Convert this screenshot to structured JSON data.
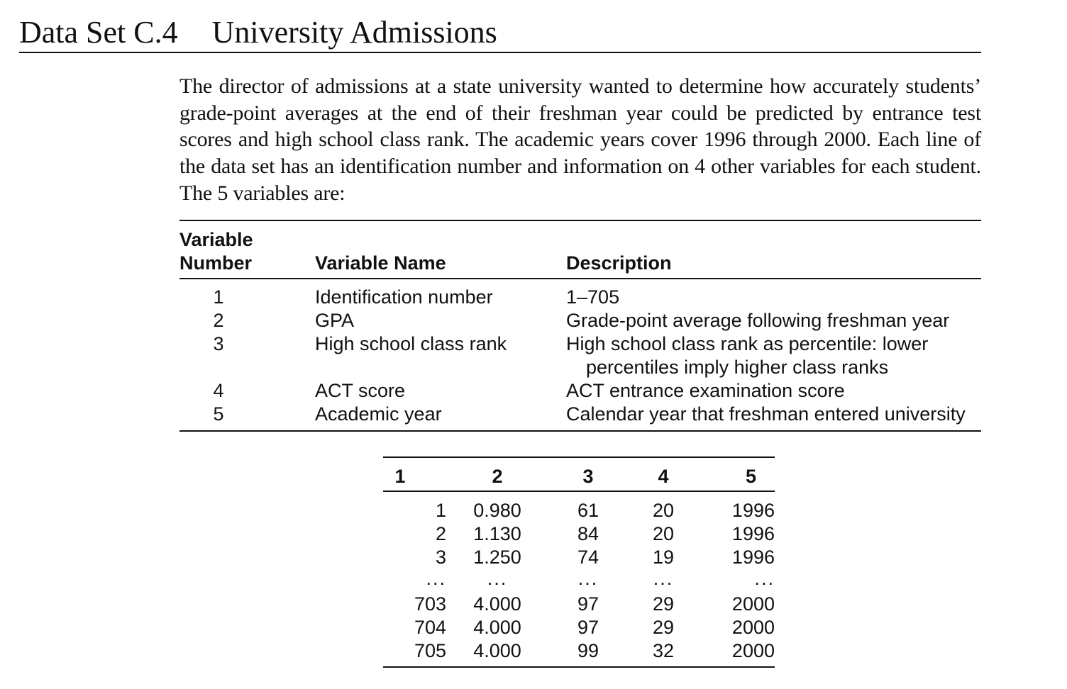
{
  "header": {
    "label": "Data Set C.4",
    "title": "University Admissions"
  },
  "intro": {
    "text": "The director of admissions at a state university wanted to determine how accurately students’ grade-point averages at the end of their freshman year could be predicted by entrance test scores and high school class rank. The academic years cover 1996 through 2000. Each line of the data set has an identification number and information on 4 other variables for each student. The 5 variables are:"
  },
  "variables_table": {
    "headers": {
      "number": "Variable\nNumber",
      "name": "Variable Name",
      "description": "Description"
    },
    "rows": [
      {
        "number": "1",
        "name": "Identification number",
        "description": "1–705",
        "description_cont": ""
      },
      {
        "number": "2",
        "name": "GPA",
        "description": "Grade-point average following freshman year",
        "description_cont": ""
      },
      {
        "number": "3",
        "name": "High school class rank",
        "description": "High school class rank as percentile: lower",
        "description_cont": "percentiles imply higher class ranks"
      },
      {
        "number": "4",
        "name": "ACT score",
        "description": "ACT entrance examination score",
        "description_cont": ""
      },
      {
        "number": "5",
        "name": "Academic year",
        "description": "Calendar year that freshman entered university",
        "description_cont": ""
      }
    ]
  },
  "data_table": {
    "headers": [
      "1",
      "2",
      "3",
      "4",
      "5"
    ],
    "rows": [
      [
        "1",
        "0.980",
        "61",
        "20",
        "1996"
      ],
      [
        "2",
        "1.130",
        "84",
        "20",
        "1996"
      ],
      [
        "3",
        "1.250",
        "74",
        "19",
        "1996"
      ],
      [
        "...",
        "...",
        "...",
        "...",
        "..."
      ],
      [
        "703",
        "4.000",
        "97",
        "29",
        "2000"
      ],
      [
        "704",
        "4.000",
        "97",
        "29",
        "2000"
      ],
      [
        "705",
        "4.000",
        "99",
        "32",
        "2000"
      ]
    ]
  }
}
